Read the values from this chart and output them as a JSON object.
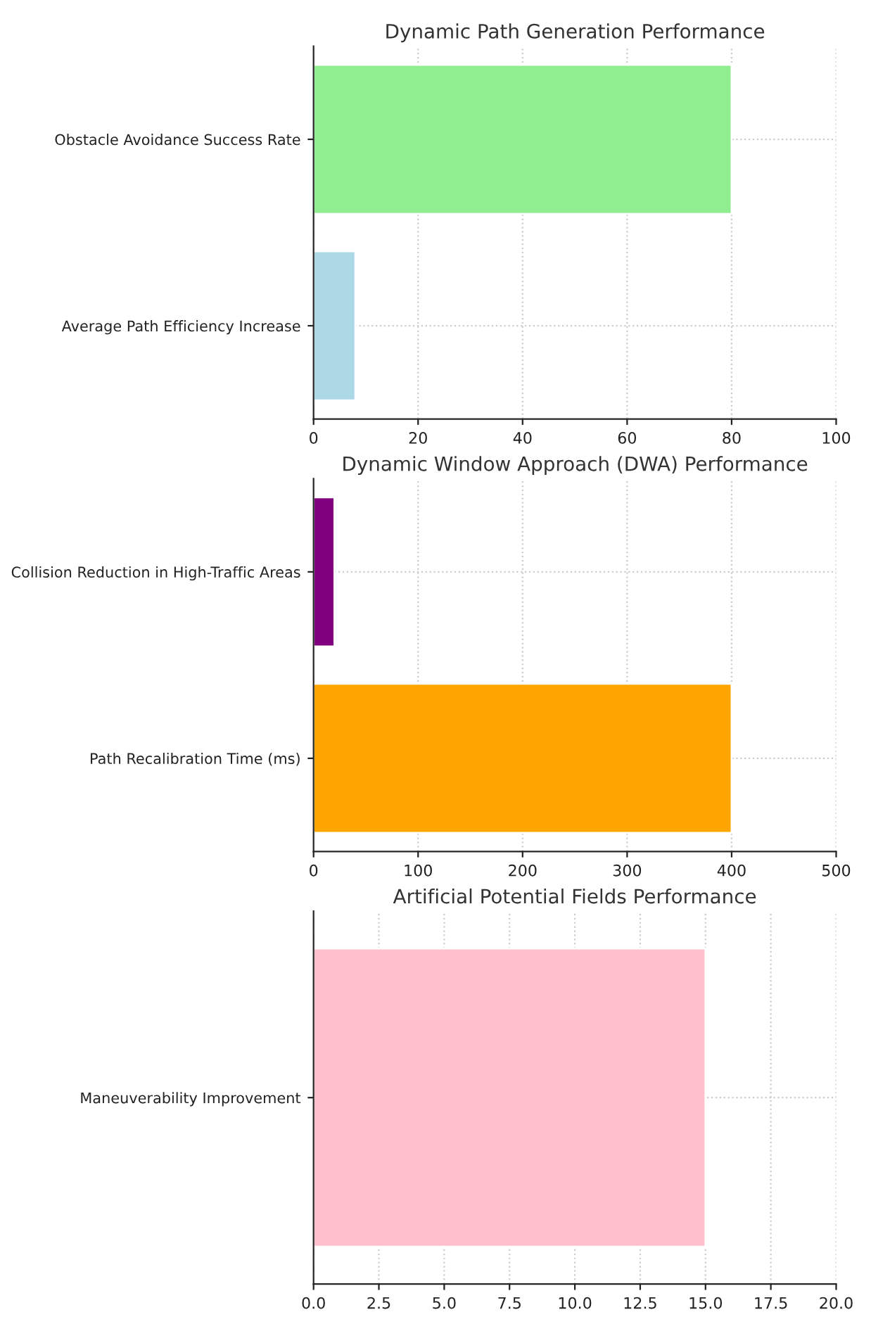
{
  "chart_data": [
    {
      "type": "bar",
      "orientation": "horizontal",
      "title": "Dynamic Path Generation Performance",
      "categories": [
        "Obstacle Avoidance Success Rate",
        "Average Path Efficiency Increase"
      ],
      "values": [
        80,
        8
      ],
      "colors": [
        "#90ee90",
        "#add8e6"
      ],
      "xlim": [
        0,
        100
      ],
      "xticks": [
        0,
        20,
        40,
        60,
        80,
        100
      ],
      "grid": true
    },
    {
      "type": "bar",
      "orientation": "horizontal",
      "title": "Dynamic Window Approach (DWA) Performance",
      "categories": [
        "Collision Reduction in High-Traffic Areas",
        "Path Recalibration Time (ms)"
      ],
      "values": [
        20,
        400
      ],
      "colors": [
        "#800080",
        "#ffa500"
      ],
      "xlim": [
        0,
        500
      ],
      "xticks": [
        0,
        100,
        200,
        300,
        400,
        500
      ],
      "grid": true
    },
    {
      "type": "bar",
      "orientation": "horizontal",
      "title": "Artificial Potential Fields Performance",
      "categories": [
        "Maneuverability Improvement"
      ],
      "values": [
        15
      ],
      "colors": [
        "#ffc0cb"
      ],
      "xlim": [
        0,
        20
      ],
      "xticks": [
        {
          "value": 0,
          "label": "0.0"
        },
        {
          "value": 2.5,
          "label": "2.5"
        },
        {
          "value": 5,
          "label": "5.0"
        },
        {
          "value": 7.5,
          "label": "7.5"
        },
        {
          "value": 10,
          "label": "10.0"
        },
        {
          "value": 12.5,
          "label": "12.5"
        },
        {
          "value": 15,
          "label": "15.0"
        },
        {
          "value": 17.5,
          "label": "17.5"
        },
        {
          "value": 20,
          "label": "20.0"
        }
      ],
      "grid": true
    }
  ]
}
